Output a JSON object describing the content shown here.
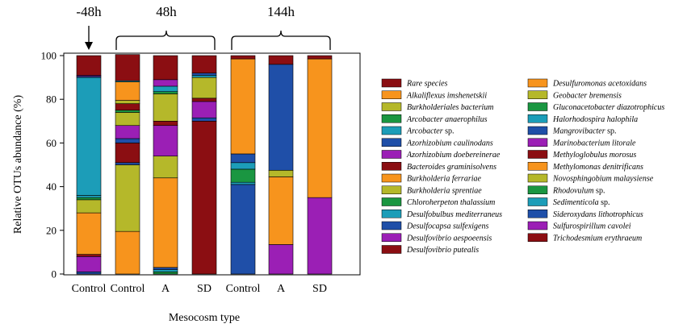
{
  "chart_data": {
    "type": "bar",
    "stacked": true,
    "xlabel": "Mesocosm type",
    "ylabel": "Relative OTUs abundance (%)",
    "ylim": [
      0,
      100
    ],
    "yticks": [
      0,
      20,
      40,
      60,
      80,
      100
    ],
    "categories": [
      "Control",
      "Control",
      "A",
      "SD",
      "Control",
      "A",
      "SD"
    ],
    "time_groups": [
      {
        "label": "-48h",
        "bars": [
          0
        ],
        "marker": "arrow"
      },
      {
        "label": "48h",
        "bars": [
          1,
          2,
          3
        ],
        "marker": "brace"
      },
      {
        "label": "144h",
        "bars": [
          4,
          5,
          6
        ],
        "marker": "brace"
      }
    ],
    "legend": {
      "columns": [
        [
          {
            "name": "Rare species",
            "color": "#8b0e12"
          },
          {
            "name": "Alkaliflexus imshenetskii",
            "color": "#f7941d"
          },
          {
            "name": "Burkholderiales bacterium",
            "color": "#b5b82a"
          },
          {
            "name": "Arcobacter anaerophilus",
            "color": "#1a9641"
          },
          {
            "name": "Arcobacter",
            "suffix": " sp.",
            "color": "#1c9db8"
          },
          {
            "name": "Azorhizobium caulinodans",
            "color": "#1f4fa8"
          },
          {
            "name": "Azorhizobium doebereinerae",
            "color": "#9b1fb5"
          },
          {
            "name": "Bacteroides graminisolvens",
            "color": "#8b0e12"
          },
          {
            "name": "Burkholderia ferrariae",
            "color": "#f7941d"
          },
          {
            "name": "Burkholderia sprentiae",
            "color": "#b5b82a"
          },
          {
            "name": "Chloroherpeton thalassium",
            "color": "#1a9641"
          },
          {
            "name": "Desulfobulbus mediterraneus",
            "color": "#1c9db8"
          },
          {
            "name": "Desulfocapsa sulfexigens",
            "color": "#1f4fa8"
          },
          {
            "name": "Desulfovibrio aespoeensis",
            "color": "#9b1fb5"
          },
          {
            "name": "Desulfovibrio putealis",
            "color": "#8b0e12"
          }
        ],
        [
          {
            "name": "Desulfuromonas acetoxidans",
            "color": "#f7941d"
          },
          {
            "name": "Geobacter bremensis",
            "color": "#b5b82a"
          },
          {
            "name": "Gluconacetobacter diazotrophicus",
            "color": "#1a9641"
          },
          {
            "name": "Halorhodospira halophila",
            "color": "#1c9db8"
          },
          {
            "name": "Mangrovibacter",
            "suffix": " sp.",
            "color": "#1f4fa8"
          },
          {
            "name": "Marinobacterium litorale",
            "color": "#9b1fb5"
          },
          {
            "name": "Methyloglobulus morosus",
            "color": "#8b0e12"
          },
          {
            "name": "Methylomonas denitrificans",
            "color": "#f7941d"
          },
          {
            "name": "Novosphingobium malaysiense",
            "color": "#b5b82a"
          },
          {
            "name": "Rhodovulum",
            "suffix": " sp.",
            "color": "#1a9641"
          },
          {
            "name": "Sedimenticola",
            "suffix": " sp.",
            "color": "#1c9db8"
          },
          {
            "name": "Sideroxydans lithotrophicus",
            "color": "#1f4fa8"
          },
          {
            "name": "Sulfurospirillum cavolei",
            "color": "#9b1fb5"
          },
          {
            "name": "Trichodesmium erythraeum",
            "color": "#8b0e12"
          }
        ]
      ]
    },
    "bars": [
      {
        "category": "Control",
        "time": "-48h",
        "segments": [
          {
            "color": "#1f4fa8",
            "value": 1
          },
          {
            "color": "#9b1fb5",
            "value": 7
          },
          {
            "color": "#8b0e12",
            "value": 1
          },
          {
            "color": "#f7941d",
            "value": 19
          },
          {
            "color": "#b5b82a",
            "value": 6
          },
          {
            "color": "#1a9641",
            "value": 1
          },
          {
            "color": "#1c9db8",
            "value": 1
          },
          {
            "color": "#1c9db8",
            "value": 54
          },
          {
            "color": "#1f4fa8",
            "value": 0.5
          },
          {
            "color": "#9b1fb5",
            "value": 0.5
          },
          {
            "color": "#8b0e12",
            "value": 9
          }
        ]
      },
      {
        "category": "Control",
        "time": "48h",
        "segments": [
          {
            "color": "#f7941d",
            "value": 19.5
          },
          {
            "color": "#b5b82a",
            "value": 30.5
          },
          {
            "color": "#1f4fa8",
            "value": 1
          },
          {
            "color": "#8b0e12",
            "value": 9
          },
          {
            "color": "#1f4fa8",
            "value": 2
          },
          {
            "color": "#9b1fb5",
            "value": 6
          },
          {
            "color": "#b5b82a",
            "value": 6
          },
          {
            "color": "#1a9641",
            "value": 1
          },
          {
            "color": "#8b0e12",
            "value": 3
          },
          {
            "color": "#b5b82a",
            "value": 1.5
          },
          {
            "color": "#f7941d",
            "value": 8.5
          },
          {
            "color": "#1c9db8",
            "value": 0.5
          },
          {
            "color": "#8b0e12",
            "value": 12
          }
        ]
      },
      {
        "category": "A",
        "time": "48h",
        "segments": [
          {
            "color": "#1a9641",
            "value": 1
          },
          {
            "color": "#1c9db8",
            "value": 1
          },
          {
            "color": "#1f4fa8",
            "value": 1
          },
          {
            "color": "#f7941d",
            "value": 41
          },
          {
            "color": "#b5b82a",
            "value": 10
          },
          {
            "color": "#9b1fb5",
            "value": 14
          },
          {
            "color": "#8b0e12",
            "value": 2
          },
          {
            "color": "#b5b82a",
            "value": 12.5
          },
          {
            "color": "#1a9641",
            "value": 1
          },
          {
            "color": "#1c9db8",
            "value": 2.5
          },
          {
            "color": "#9b1fb5",
            "value": 3
          },
          {
            "color": "#8b0e12",
            "value": 11
          }
        ]
      },
      {
        "category": "SD",
        "time": "48h",
        "segments": [
          {
            "color": "#8b0e12",
            "value": 70
          },
          {
            "color": "#1f4fa8",
            "value": 1.5
          },
          {
            "color": "#9b1fb5",
            "value": 7.5
          },
          {
            "color": "#8b0e12",
            "value": 1.5
          },
          {
            "color": "#b5b82a",
            "value": 9.5
          },
          {
            "color": "#1c9db8",
            "value": 1
          },
          {
            "color": "#1f4fa8",
            "value": 1
          },
          {
            "color": "#8b0e12",
            "value": 8
          }
        ]
      },
      {
        "category": "Control",
        "time": "144h",
        "segments": [
          {
            "color": "#1f4fa8",
            "value": 41
          },
          {
            "color": "#1c9db8",
            "value": 1
          },
          {
            "color": "#1a9641",
            "value": 6
          },
          {
            "color": "#1c9db8",
            "value": 3
          },
          {
            "color": "#1f4fa8",
            "value": 4
          },
          {
            "color": "#f7941d",
            "value": 43.5
          },
          {
            "color": "#8b0e12",
            "value": 1.5
          }
        ]
      },
      {
        "category": "A",
        "time": "144h",
        "segments": [
          {
            "color": "#9b1fb5",
            "value": 13.5
          },
          {
            "color": "#f7941d",
            "value": 31
          },
          {
            "color": "#b5b82a",
            "value": 3
          },
          {
            "color": "#1f4fa8",
            "value": 48.5
          },
          {
            "color": "#8b0e12",
            "value": 4
          }
        ]
      },
      {
        "category": "SD",
        "time": "144h",
        "segments": [
          {
            "color": "#9b1fb5",
            "value": 35
          },
          {
            "color": "#f7941d",
            "value": 63.5
          },
          {
            "color": "#8b0e12",
            "value": 1.5
          }
        ]
      }
    ]
  }
}
